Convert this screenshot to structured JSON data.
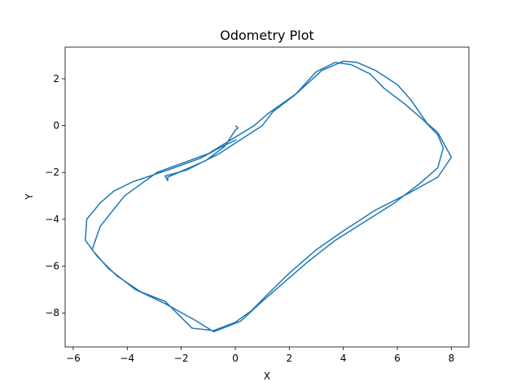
{
  "chart_data": {
    "type": "line",
    "title": "Odometry Plot",
    "xlabel": "X",
    "ylabel": "Y",
    "xlim": [
      -6.3,
      8.65
    ],
    "ylim": [
      -9.45,
      3.35
    ],
    "grid": false,
    "line_color": "#1f77b4",
    "xticks": [
      -6,
      -4,
      -2,
      0,
      2,
      4,
      6,
      8
    ],
    "yticks": [
      2,
      0,
      -2,
      -4,
      -6,
      -8
    ],
    "series": [
      {
        "points": [
          [
            0.0,
            0.0
          ],
          [
            0.1,
            -0.1
          ],
          [
            0.0,
            -0.2
          ],
          [
            -0.4,
            -0.9
          ],
          [
            -1.1,
            -1.5
          ],
          [
            -2.5,
            -2.2
          ],
          [
            -2.5,
            -2.35
          ],
          [
            -2.6,
            -2.15
          ],
          [
            -1.8,
            -1.9
          ],
          [
            -0.6,
            -1.2
          ],
          [
            1.0,
            0.0
          ],
          [
            1.4,
            0.6
          ],
          [
            2.2,
            1.3
          ],
          [
            3.0,
            2.3
          ],
          [
            3.7,
            2.7
          ],
          [
            4.3,
            2.6
          ],
          [
            5.0,
            2.2
          ],
          [
            5.5,
            1.6
          ],
          [
            6.3,
            0.9
          ],
          [
            7.0,
            0.2
          ],
          [
            7.5,
            -0.4
          ],
          [
            7.7,
            -0.95
          ],
          [
            7.5,
            -1.8
          ],
          [
            6.8,
            -2.5
          ],
          [
            5.9,
            -3.3
          ],
          [
            4.8,
            -4.1
          ],
          [
            3.7,
            -4.9
          ],
          [
            2.7,
            -5.8
          ],
          [
            1.9,
            -6.6
          ],
          [
            1.0,
            -7.5
          ],
          [
            0.2,
            -8.35
          ],
          [
            -0.8,
            -8.8
          ],
          [
            -1.5,
            -8.3
          ],
          [
            -2.6,
            -7.6
          ],
          [
            -3.7,
            -7.0
          ],
          [
            -4.7,
            -6.1
          ],
          [
            -5.3,
            -5.3
          ],
          [
            -5.0,
            -4.3
          ],
          [
            -4.1,
            -3.0
          ],
          [
            -2.9,
            -2.0
          ],
          [
            -1.0,
            -1.2
          ],
          [
            0.7,
            0.0
          ],
          [
            1.2,
            0.5
          ],
          [
            2.3,
            1.4
          ],
          [
            3.2,
            2.35
          ],
          [
            4.0,
            2.75
          ],
          [
            4.5,
            2.7
          ],
          [
            5.2,
            2.35
          ],
          [
            6.0,
            1.75
          ],
          [
            6.5,
            1.1
          ],
          [
            7.1,
            0.1
          ],
          [
            7.5,
            -0.3
          ],
          [
            8.0,
            -1.35
          ],
          [
            7.5,
            -2.2
          ],
          [
            6.4,
            -2.9
          ],
          [
            5.2,
            -3.6
          ],
          [
            4.0,
            -4.5
          ],
          [
            3.0,
            -5.3
          ],
          [
            2.0,
            -6.3
          ],
          [
            1.2,
            -7.2
          ],
          [
            0.6,
            -7.9
          ],
          [
            0.0,
            -8.4
          ],
          [
            -0.8,
            -8.75
          ],
          [
            -1.6,
            -8.65
          ],
          [
            -2.6,
            -7.5
          ],
          [
            -3.5,
            -7.1
          ],
          [
            -4.4,
            -6.4
          ],
          [
            -5.1,
            -5.6
          ],
          [
            -5.55,
            -4.9
          ],
          [
            -5.5,
            -4.0
          ],
          [
            -5.0,
            -3.3
          ],
          [
            -4.5,
            -2.8
          ],
          [
            -3.8,
            -2.4
          ],
          [
            -2.5,
            -1.9
          ],
          [
            -1.3,
            -1.4
          ],
          [
            -0.5,
            -0.9
          ],
          [
            0.05,
            -0.6
          ]
        ]
      }
    ]
  }
}
